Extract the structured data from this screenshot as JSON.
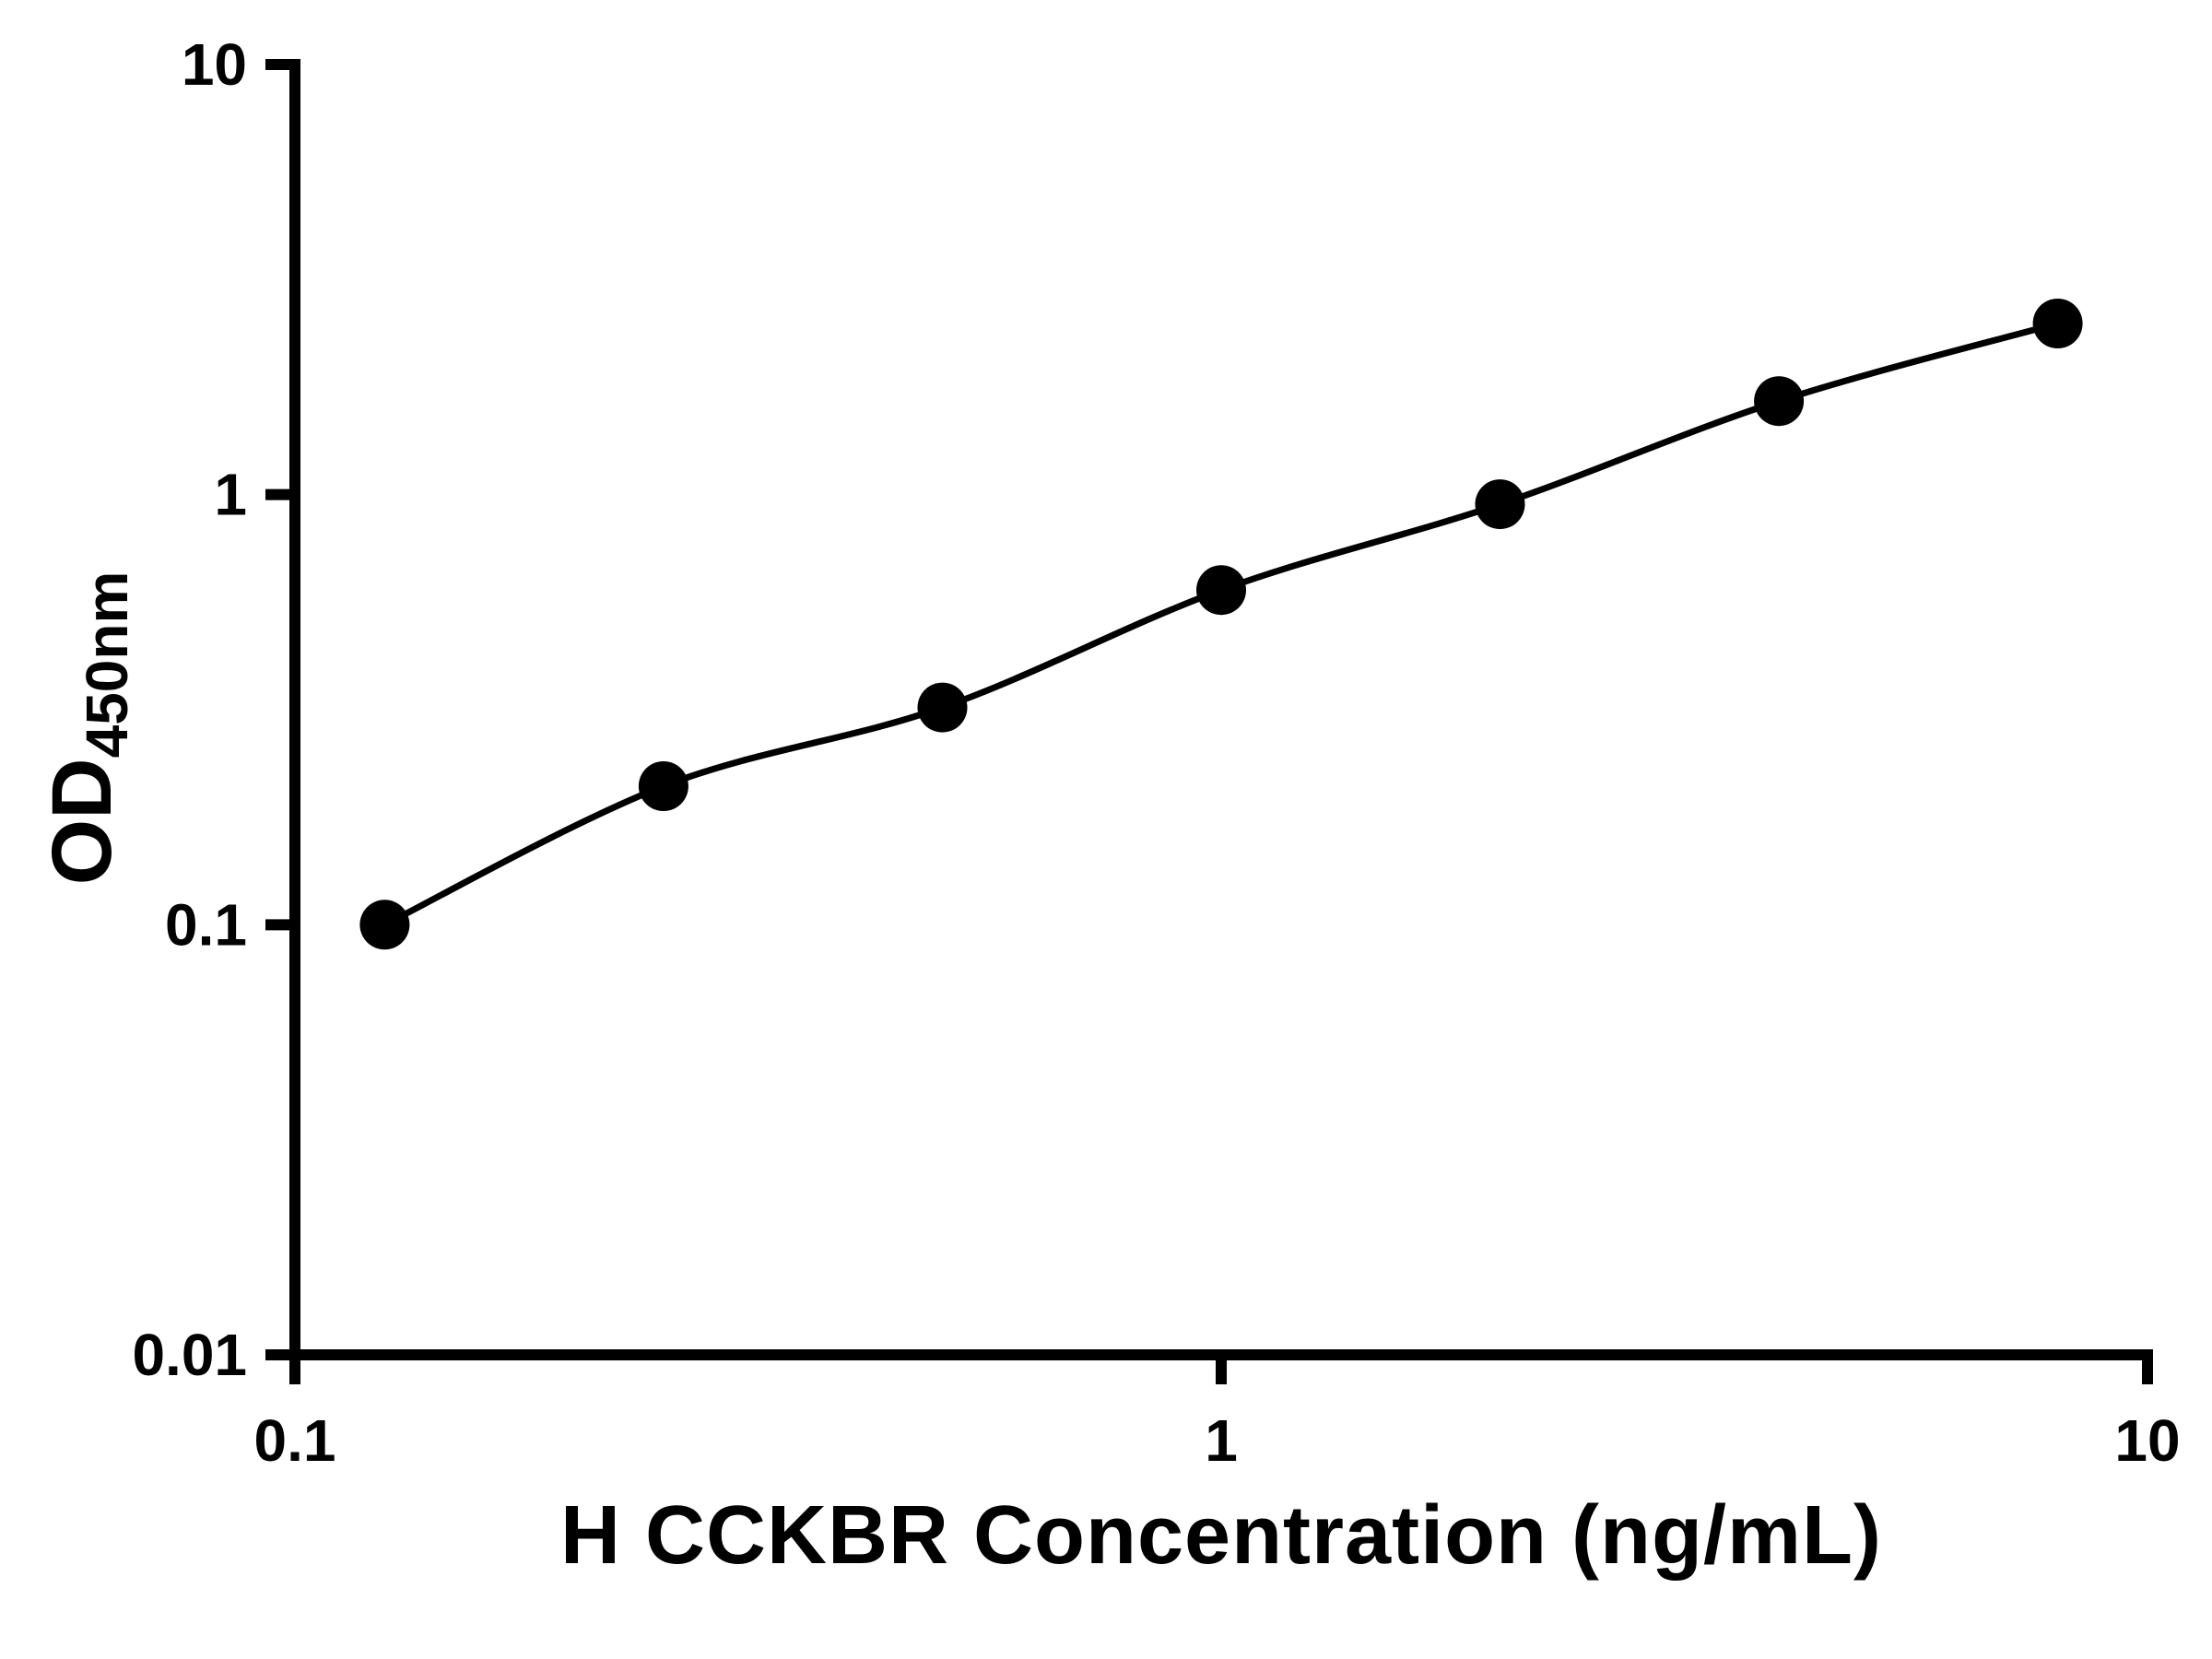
{
  "chart_data": {
    "type": "scatter",
    "title": "",
    "xlabel": "H CCKBR Concentration (ng/mL)",
    "ylabel_main": "OD",
    "ylabel_sub": "450nm",
    "x": [
      0.125,
      0.25,
      0.5,
      1,
      2,
      4,
      8
    ],
    "y": [
      0.1,
      0.21,
      0.32,
      0.6,
      0.95,
      1.65,
      2.5
    ],
    "xlim": [
      0.1,
      10
    ],
    "ylim": [
      0.01,
      10
    ],
    "x_scale": "log",
    "y_scale": "log",
    "x_ticks": [
      {
        "value": 0.1,
        "label": "0.1"
      },
      {
        "value": 1,
        "label": "1"
      },
      {
        "value": 10,
        "label": "10"
      }
    ],
    "y_ticks": [
      {
        "value": 0.01,
        "label": "0.01"
      },
      {
        "value": 0.1,
        "label": "0.1"
      },
      {
        "value": 1,
        "label": "1"
      },
      {
        "value": 10,
        "label": "10"
      }
    ],
    "marker": "filled-circle",
    "line": true,
    "grid": false,
    "legend": false,
    "color": "#000000",
    "background": "#ffffff"
  }
}
